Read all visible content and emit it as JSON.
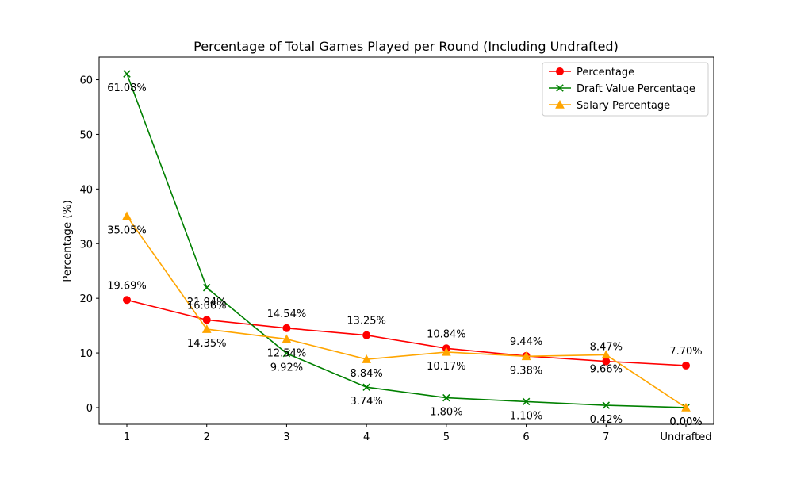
{
  "chart_data": {
    "type": "line",
    "title": "Percentage of Total Games Played per Round (Including Undrafted)",
    "xlabel": "",
    "ylabel": "Percentage (%)",
    "categories": [
      "1",
      "2",
      "3",
      "4",
      "5",
      "6",
      "7",
      "Undrafted"
    ],
    "ylim": [
      -3.05,
      64.14
    ],
    "yticks": [
      0,
      10,
      20,
      30,
      40,
      50,
      60
    ],
    "grid": false,
    "legend_position": "upper right",
    "series": [
      {
        "name": "Percentage",
        "color": "#ff0000",
        "marker": "circle",
        "values": [
          19.69,
          16.06,
          14.54,
          13.25,
          10.84,
          9.44,
          8.47,
          7.7
        ],
        "labels": [
          "19.69%",
          "16.06%",
          "14.54%",
          "13.25%",
          "10.84%",
          "9.44%",
          "8.47%",
          "7.70%"
        ]
      },
      {
        "name": "Draft Value Percentage",
        "color": "#008000",
        "marker": "x",
        "values": [
          61.08,
          21.94,
          9.92,
          3.74,
          1.8,
          1.1,
          0.42,
          0.0
        ],
        "labels": [
          "61.08%",
          "21.94%",
          "9.92%",
          "3.74%",
          "1.80%",
          "1.10%",
          "0.42%",
          "0.00%"
        ]
      },
      {
        "name": "Salary Percentage",
        "color": "#ffa500",
        "marker": "triangle",
        "values": [
          35.05,
          14.35,
          12.54,
          8.84,
          10.17,
          9.38,
          9.66,
          0.0
        ],
        "labels": [
          "35.05%",
          "14.35%",
          "12.54%",
          "8.84%",
          "10.17%",
          "9.38%",
          "9.66%",
          "0.00%"
        ]
      }
    ]
  }
}
